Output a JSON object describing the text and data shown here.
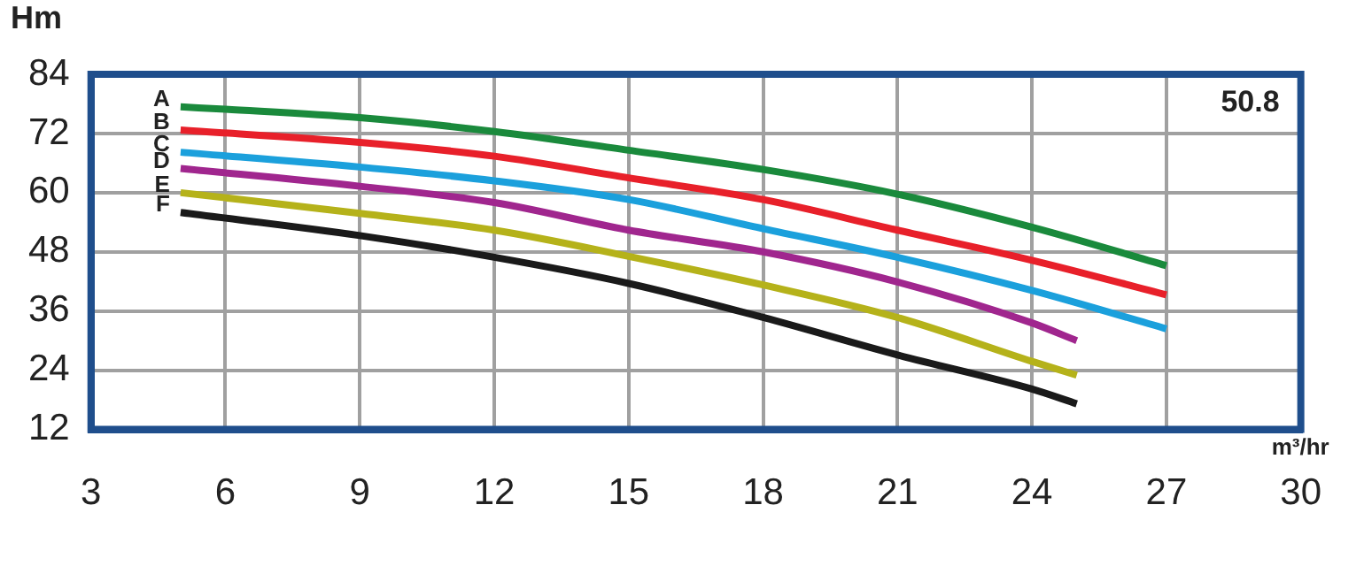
{
  "chart_data": {
    "type": "line",
    "xlabel": "m³/hr",
    "ylabel": "Hm",
    "annotations": [
      "50.8"
    ],
    "xlim": [
      3,
      30
    ],
    "xticks": [
      3,
      6,
      9,
      12,
      15,
      18,
      21,
      24,
      27,
      30
    ],
    "ylim": [
      12,
      84
    ],
    "yticks": [
      12,
      24,
      36,
      48,
      60,
      72,
      84
    ],
    "grid": true,
    "legend": false,
    "marker": "none",
    "line_style": "solid",
    "series": [
      {
        "name": "A",
        "color": "#1a8a3c",
        "x": [
          5,
          6,
          9,
          12,
          15,
          18,
          21,
          24,
          27
        ],
        "values": [
          77.4,
          76.9,
          75.2,
          72.4,
          68.6,
          64.7,
          59.7,
          53,
          45.2
        ]
      },
      {
        "name": "B",
        "color": "#e8202a",
        "x": [
          5,
          9,
          12,
          15,
          18,
          21,
          24,
          27
        ],
        "values": [
          72.7,
          70.2,
          67.4,
          63,
          58.6,
          52.4,
          46.3,
          39.3
        ]
      },
      {
        "name": "C",
        "color": "#1ba0dc",
        "x": [
          5,
          9,
          12,
          15,
          18,
          21,
          24,
          27
        ],
        "values": [
          68.2,
          65.2,
          62.4,
          58.6,
          52.7,
          46.9,
          40.2,
          32.4
        ]
      },
      {
        "name": "D",
        "color": "#a0268e",
        "x": [
          5,
          9,
          12,
          15,
          18,
          21,
          24,
          25
        ],
        "values": [
          64.9,
          61.3,
          58,
          52.4,
          48,
          41.9,
          33.6,
          30
        ]
      },
      {
        "name": "E",
        "color": "#b5b21a",
        "x": [
          5,
          9,
          12,
          15,
          18,
          21,
          24,
          25
        ],
        "values": [
          60,
          55.8,
          52.4,
          47.1,
          41.3,
          34.7,
          25.8,
          23
        ]
      },
      {
        "name": "F",
        "color": "#1a1a1a",
        "x": [
          5,
          9,
          12,
          15,
          18,
          21,
          24,
          25
        ],
        "values": [
          56,
          51.3,
          46.9,
          41.6,
          34.7,
          27.1,
          20.2,
          17.2
        ]
      }
    ]
  }
}
